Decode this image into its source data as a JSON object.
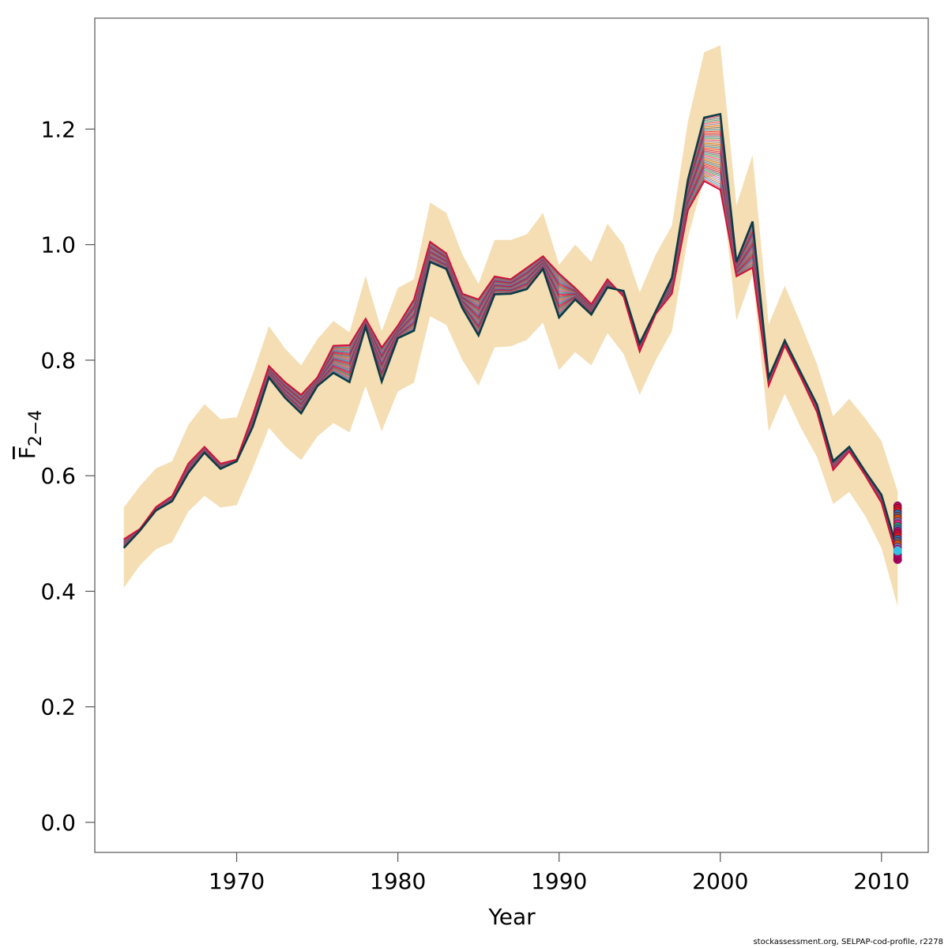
{
  "footer": "stockassessment.org, SELPAP-cod-profile, r2278",
  "colors": {
    "band": "#f5deb3",
    "base": "#0d3b45",
    "profile_palette": [
      "#d0103a",
      "#b01060",
      "#3a6db5",
      "#1b9e77",
      "#e7298a",
      "#7570b3",
      "#d95f02",
      "#666666",
      "#1f78b4",
      "#e31a1c"
    ],
    "highlight_point": "#35c0e8",
    "base_point": "#a0005a"
  },
  "chart_data": {
    "type": "line",
    "xlabel": "Year",
    "ylabel_main": "F",
    "ylabel_sub": "2−4",
    "xlim": [
      1961.2,
      2012.9
    ],
    "ylim": [
      -0.052,
      1.392
    ],
    "x_ticks": [
      1970,
      1980,
      1990,
      2000,
      2010
    ],
    "y_ticks": [
      "0.0",
      "0.2",
      "0.4",
      "0.6",
      "0.8",
      "1.0",
      "1.2"
    ],
    "x": [
      1963,
      1964,
      1965,
      1966,
      1967,
      1968,
      1969,
      1970,
      1971,
      1972,
      1973,
      1974,
      1975,
      1976,
      1977,
      1978,
      1979,
      1980,
      1981,
      1982,
      1983,
      1984,
      1985,
      1986,
      1987,
      1988,
      1989,
      1990,
      1991,
      1992,
      1993,
      1994,
      1995,
      1996,
      1997,
      1998,
      1999,
      2000,
      2001,
      2002,
      2003,
      2004,
      2005,
      2006,
      2007,
      2008,
      2009,
      2010,
      2011
    ],
    "confidence_band": {
      "upper": [
        0.545,
        0.582,
        0.613,
        0.625,
        0.688,
        0.724,
        0.698,
        0.701,
        0.776,
        0.859,
        0.82,
        0.791,
        0.836,
        0.868,
        0.848,
        0.946,
        0.85,
        0.925,
        0.94,
        1.073,
        1.055,
        0.983,
        0.932,
        1.008,
        1.008,
        1.018,
        1.055,
        0.965,
        1.0,
        0.97,
        1.036,
        1.0,
        0.917,
        0.983,
        1.033,
        1.214,
        1.333,
        1.345,
        1.068,
        1.155,
        0.862,
        0.929,
        0.863,
        0.793,
        0.703,
        0.733,
        0.699,
        0.66,
        0.573
      ],
      "lower": [
        0.406,
        0.445,
        0.473,
        0.485,
        0.538,
        0.565,
        0.545,
        0.549,
        0.613,
        0.683,
        0.651,
        0.627,
        0.668,
        0.691,
        0.675,
        0.755,
        0.677,
        0.746,
        0.761,
        0.876,
        0.861,
        0.8,
        0.756,
        0.822,
        0.824,
        0.835,
        0.865,
        0.783,
        0.814,
        0.791,
        0.847,
        0.811,
        0.74,
        0.8,
        0.85,
        1.013,
        1.115,
        1.121,
        0.869,
        0.948,
        0.677,
        0.742,
        0.683,
        0.632,
        0.551,
        0.572,
        0.53,
        0.475,
        0.374
      ]
    },
    "series": [
      {
        "name": "",
        "values": [
          0.475,
          0.505,
          0.54,
          0.556,
          0.605,
          0.64,
          0.612,
          0.625,
          0.685,
          0.77,
          0.735,
          0.708,
          0.755,
          0.778,
          0.762,
          0.858,
          0.763,
          0.838,
          0.851,
          0.97,
          0.958,
          0.89,
          0.843,
          0.914,
          0.915,
          0.923,
          0.958,
          0.874,
          0.905,
          0.879,
          0.926,
          0.92,
          0.829,
          0.885,
          0.943,
          1.113,
          1.22,
          1.226,
          0.97,
          1.04,
          0.77,
          0.834,
          0.778,
          0.723,
          0.625,
          0.65,
          0.607,
          0.567,
          0.47
        ]
      },
      {
        "name": "",
        "values": [
          0.49,
          0.508,
          0.546,
          0.565,
          0.621,
          0.65,
          0.621,
          0.628,
          0.705,
          0.79,
          0.762,
          0.74,
          0.77,
          0.825,
          0.826,
          0.872,
          0.822,
          0.86,
          0.905,
          1.005,
          0.985,
          0.915,
          0.905,
          0.945,
          0.94,
          0.96,
          0.98,
          0.95,
          0.925,
          0.897,
          0.94,
          0.91,
          0.815,
          0.88,
          0.915,
          1.06,
          1.11,
          1.095,
          0.945,
          0.96,
          0.756,
          0.825,
          0.77,
          0.71,
          0.61,
          0.642,
          0.6,
          0.553,
          0.455
        ]
      }
    ],
    "profile_count": 40,
    "end_points": {
      "x": 2011,
      "min": 0.455,
      "max": 0.548,
      "count": 22
    }
  }
}
